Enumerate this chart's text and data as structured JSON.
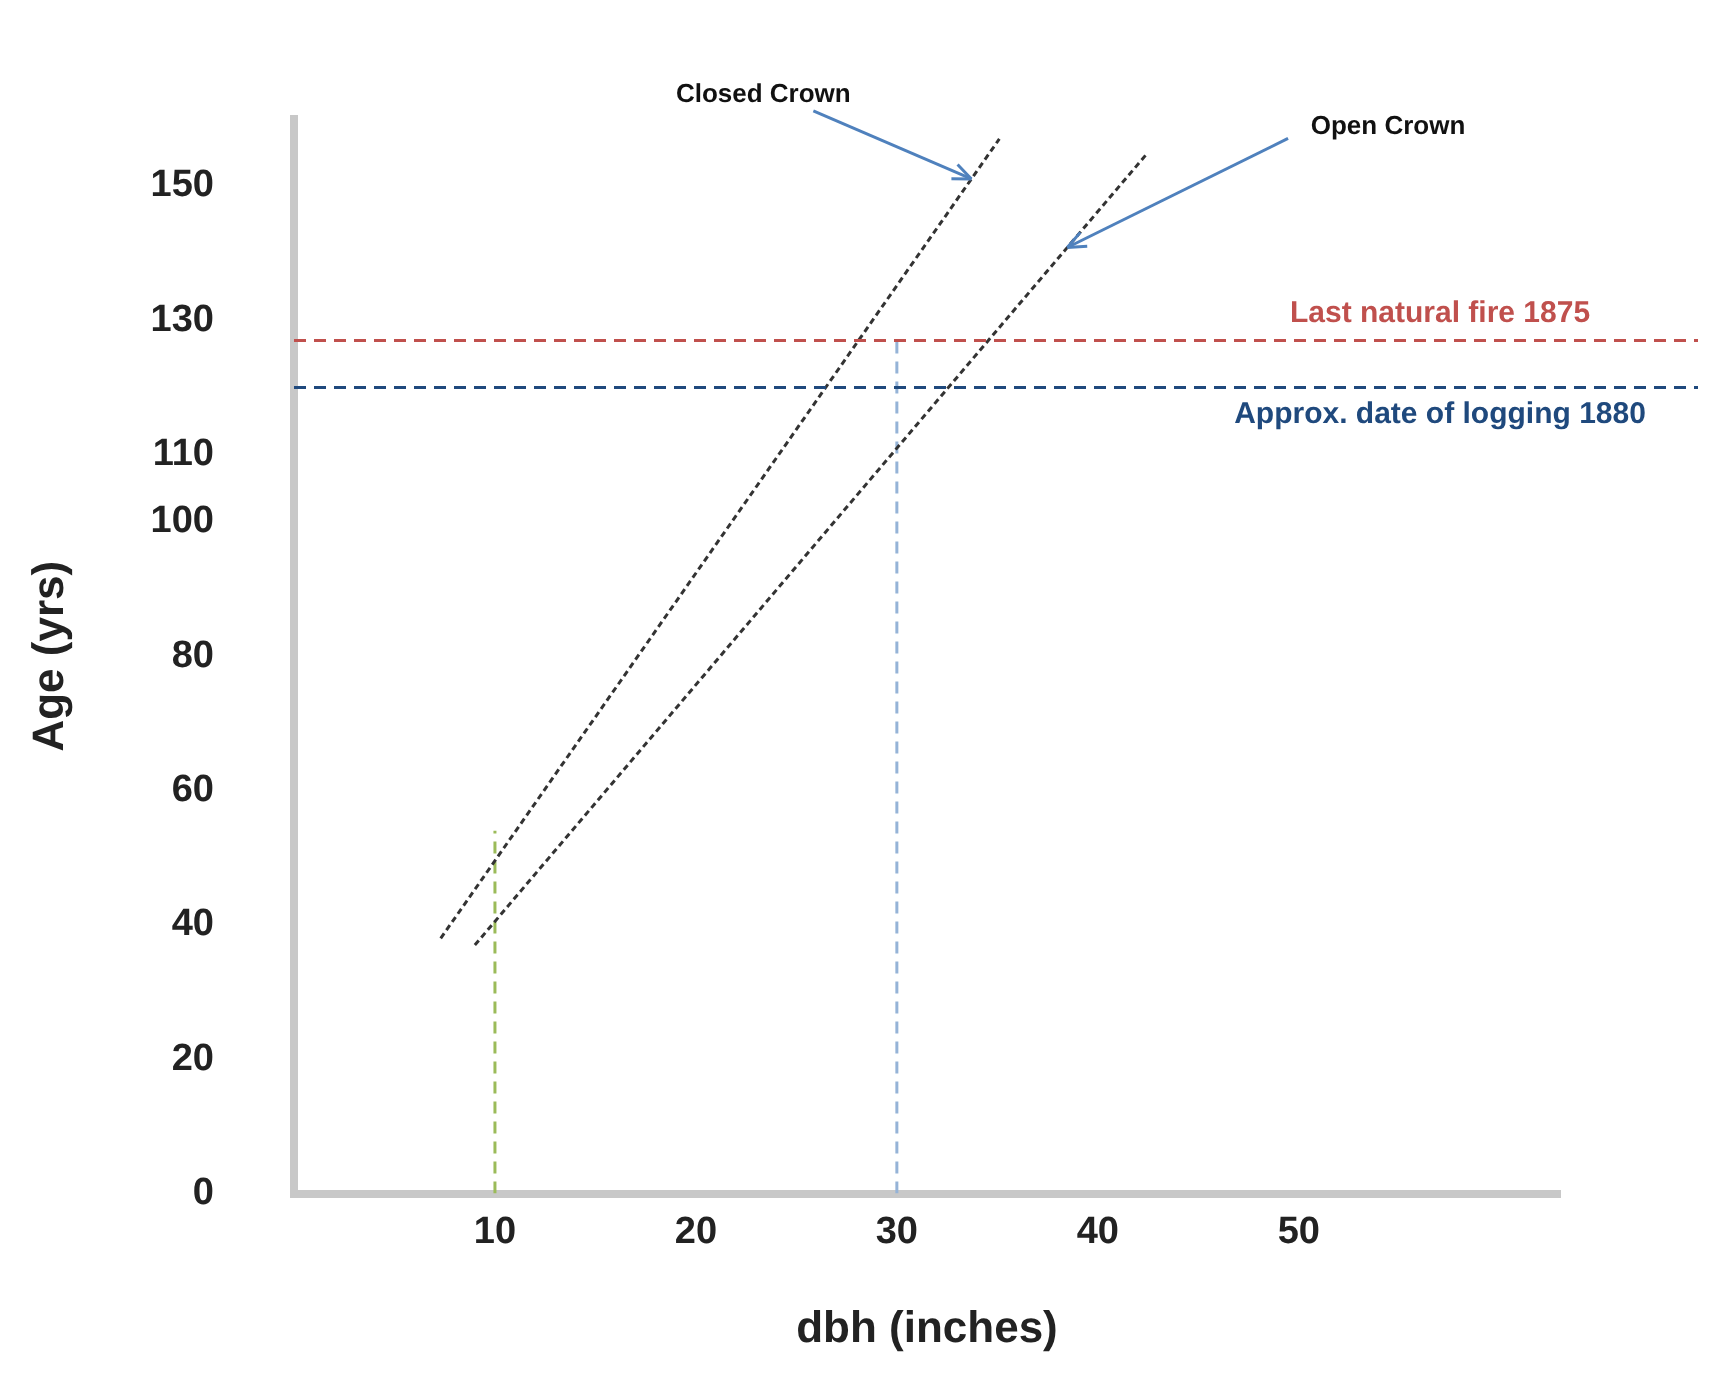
{
  "chart_data": {
    "type": "line",
    "xlabel": "dbh (inches)",
    "ylabel": "Age (yrs)",
    "xlim": [
      0,
      63
    ],
    "xticks": [
      10,
      20,
      30,
      40,
      50
    ],
    "ylim": [
      0,
      160
    ],
    "yticks": [
      0,
      20,
      40,
      60,
      80,
      100,
      110,
      130,
      150
    ],
    "grid": false,
    "legend": false,
    "marker": "none",
    "series": [
      {
        "name": "Closed Crown",
        "color": "#333333",
        "line_style": "dotted",
        "x": [
          7.3,
          35.1
        ],
        "values": [
          38,
          157
        ]
      },
      {
        "name": "Open Crown",
        "color": "#333333",
        "line_style": "dotted",
        "x": [
          9,
          42.5
        ],
        "values": [
          37,
          155
        ]
      },
      {
        "color": "#9bbb59",
        "line_style": "dashed",
        "x": [
          10,
          10
        ],
        "values": [
          0,
          54
        ]
      },
      {
        "color": "#95b3d7",
        "line_style": "dashed",
        "x": [
          30,
          30
        ],
        "values": [
          0,
          127
        ]
      }
    ],
    "ref_lines": [
      {
        "axis": "y",
        "value": 127,
        "label": "Last natural fire 1875",
        "color": "#c0504d",
        "line_style": "dashed"
      },
      {
        "axis": "y",
        "value": 120,
        "label": "Approx. date of logging 1880",
        "color": "#1f497d",
        "line_style": "dashed"
      }
    ]
  }
}
